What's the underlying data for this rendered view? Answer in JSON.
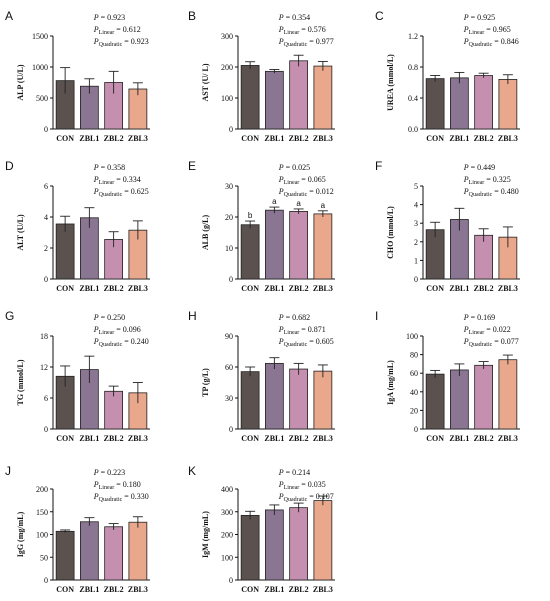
{
  "colors": {
    "CON": "#5b5250",
    "ZBL1": "#8a7592",
    "ZBL2": "#c58fb0",
    "ZBL3": "#e9a88c",
    "axis": "#111111"
  },
  "stat_labels": {
    "p": "P",
    "linear": "Linear",
    "quadratic": "Quadratic"
  },
  "chart_data": [
    {
      "letter": "A",
      "type": "bar",
      "ylabel": "ALP (U/L)",
      "categories": [
        "CON",
        "ZBL1",
        "ZBL2",
        "ZBL3"
      ],
      "values": [
        780,
        690,
        750,
        645
      ],
      "errors": [
        210,
        120,
        180,
        100
      ],
      "ylim": [
        0,
        1500
      ],
      "yticks": [
        0,
        500,
        1000,
        1500
      ],
      "p": "0.923",
      "p_linear": "0.612",
      "p_quadratic": "0.923",
      "letters": []
    },
    {
      "letter": "B",
      "type": "bar",
      "ylabel": "AST (U/ L)",
      "categories": [
        "CON",
        "ZBL1",
        "ZBL2",
        "ZBL3"
      ],
      "values": [
        205,
        186,
        220,
        203
      ],
      "errors": [
        12,
        6,
        18,
        15
      ],
      "ylim": [
        0,
        300
      ],
      "yticks": [
        0,
        100,
        200,
        300
      ],
      "p": "0.354",
      "p_linear": "0.576",
      "p_quadratic": "0.977",
      "letters": []
    },
    {
      "letter": "C",
      "type": "bar",
      "ylabel": "UREA (mmol/L)",
      "categories": [
        "CON",
        "ZBL1",
        "ZBL2",
        "ZBL3"
      ],
      "values": [
        0.65,
        0.66,
        0.69,
        0.64
      ],
      "errors": [
        0.04,
        0.07,
        0.03,
        0.06
      ],
      "ylim": [
        0,
        1.2
      ],
      "yticks": [
        0.0,
        0.4,
        0.8,
        1.2
      ],
      "p": "0.925",
      "p_linear": "0.965",
      "p_quadratic": "0.846",
      "letters": []
    },
    {
      "letter": "D",
      "type": "bar",
      "ylabel": "ALT (U/L)",
      "categories": [
        "CON",
        "ZBL1",
        "ZBL2",
        "ZBL3"
      ],
      "values": [
        3.55,
        3.95,
        2.55,
        3.15
      ],
      "errors": [
        0.5,
        0.65,
        0.5,
        0.6
      ],
      "ylim": [
        0,
        6
      ],
      "yticks": [
        0,
        2,
        4,
        6
      ],
      "p": "0.358",
      "p_linear": "0.334",
      "p_quadratic": "0.625",
      "letters": []
    },
    {
      "letter": "E",
      "type": "bar",
      "ylabel": "ALB (g/L)",
      "categories": [
        "CON",
        "ZBL1",
        "ZBL2",
        "ZBL3"
      ],
      "values": [
        17.5,
        22.2,
        21.8,
        21.0
      ],
      "errors": [
        1.2,
        1.0,
        0.8,
        1.0
      ],
      "ylim": [
        0,
        30
      ],
      "yticks": [
        0,
        10,
        20,
        30
      ],
      "p": "0.025",
      "p_linear": "0.065",
      "p_quadratic": "0.012",
      "letters": [
        "b",
        "a",
        "a",
        "a"
      ]
    },
    {
      "letter": "F",
      "type": "bar",
      "ylabel": "CHO (mmol/L)",
      "categories": [
        "CON",
        "ZBL1",
        "ZBL2",
        "ZBL3"
      ],
      "values": [
        2.65,
        3.2,
        2.35,
        2.25
      ],
      "errors": [
        0.4,
        0.6,
        0.35,
        0.55
      ],
      "ylim": [
        0,
        5
      ],
      "yticks": [
        0,
        1,
        2,
        3,
        4,
        5
      ],
      "p": "0.449",
      "p_linear": "0.325",
      "p_quadratic": "0.480",
      "letters": []
    },
    {
      "letter": "G",
      "type": "bar",
      "ylabel": "TG (mmol/L)",
      "categories": [
        "CON",
        "ZBL1",
        "ZBL2",
        "ZBL3"
      ],
      "values": [
        10.2,
        11.5,
        7.3,
        7.0
      ],
      "errors": [
        2.0,
        2.6,
        1.0,
        2.0
      ],
      "ylim": [
        0,
        18
      ],
      "yticks": [
        0,
        6,
        12,
        18
      ],
      "p": "0.250",
      "p_linear": "0.096",
      "p_quadratic": "0.240",
      "letters": []
    },
    {
      "letter": "H",
      "type": "bar",
      "ylabel": "TP (g/L)",
      "categories": [
        "CON",
        "ZBL1",
        "ZBL2",
        "ZBL3"
      ],
      "values": [
        55.5,
        63.5,
        58.0,
        56.0
      ],
      "errors": [
        4.5,
        5.5,
        5.5,
        6.0
      ],
      "ylim": [
        0,
        90
      ],
      "yticks": [
        0,
        30,
        60,
        90
      ],
      "p": "0.682",
      "p_linear": "0.871",
      "p_quadratic": "0.605",
      "letters": []
    },
    {
      "letter": "I",
      "type": "bar",
      "ylabel": "IgA (mg/mL)",
      "categories": [
        "CON",
        "ZBL1",
        "ZBL2",
        "ZBL3"
      ],
      "values": [
        59,
        63.5,
        68.5,
        74.5
      ],
      "errors": [
        4,
        6.5,
        4,
        5
      ],
      "ylim": [
        0,
        100
      ],
      "yticks": [
        0,
        20,
        40,
        60,
        80,
        100
      ],
      "p": "0.169",
      "p_linear": "0.022",
      "p_quadratic": "0.077",
      "letters": []
    },
    {
      "letter": "J",
      "type": "bar",
      "ylabel": "IgG (mg/mL)",
      "categories": [
        "CON",
        "ZBL1",
        "ZBL2",
        "ZBL3"
      ],
      "values": [
        107,
        128,
        117,
        127
      ],
      "errors": [
        3,
        9,
        7,
        12
      ],
      "ylim": [
        0,
        200
      ],
      "yticks": [
        0,
        50,
        100,
        150,
        200
      ],
      "p": "0.223",
      "p_linear": "0.180",
      "p_quadratic": "0.330",
      "letters": []
    },
    {
      "letter": "K",
      "type": "bar",
      "ylabel": "IgM (mg/mL)",
      "categories": [
        "CON",
        "ZBL1",
        "ZBL2",
        "ZBL3"
      ],
      "values": [
        284,
        308,
        318,
        349
      ],
      "errors": [
        18,
        22,
        20,
        20
      ],
      "ylim": [
        0,
        400
      ],
      "yticks": [
        0,
        100,
        200,
        300,
        400
      ],
      "p": "0.214",
      "p_linear": "0.035",
      "p_quadratic": "0.107",
      "letters": []
    }
  ]
}
